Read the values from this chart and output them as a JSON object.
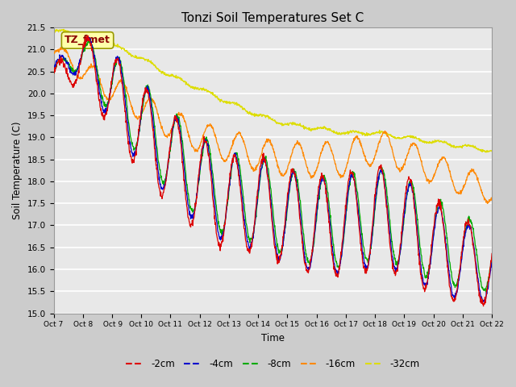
{
  "title": "Tonzi Soil Temperatures Set C",
  "xlabel": "Time",
  "ylabel": "Soil Temperature (C)",
  "ylim": [
    15.0,
    21.5
  ],
  "series": [
    "-2cm",
    "-4cm",
    "-8cm",
    "-16cm",
    "-32cm"
  ],
  "colors": [
    "#dd0000",
    "#0000cc",
    "#00aa00",
    "#ff8800",
    "#dddd00"
  ],
  "tick_labels": [
    "Oct 7",
    "Oct 8",
    " Oct 9",
    "Oct 10",
    "Oct 11",
    "Oct 12",
    "Oct 13",
    "Oct 14",
    "Oct 15",
    "Oct 16",
    "Oct 17",
    "Oct 18",
    "Oct 19",
    "Oct 20",
    "Oct 21",
    "Oct 22"
  ],
  "annotation_text": "TZ_fmet",
  "bg_color": "#cccccc",
  "plot_bg_color": "#e8e8e8",
  "n_points": 1440,
  "figwidth": 6.4,
  "figheight": 4.8,
  "dpi": 100
}
